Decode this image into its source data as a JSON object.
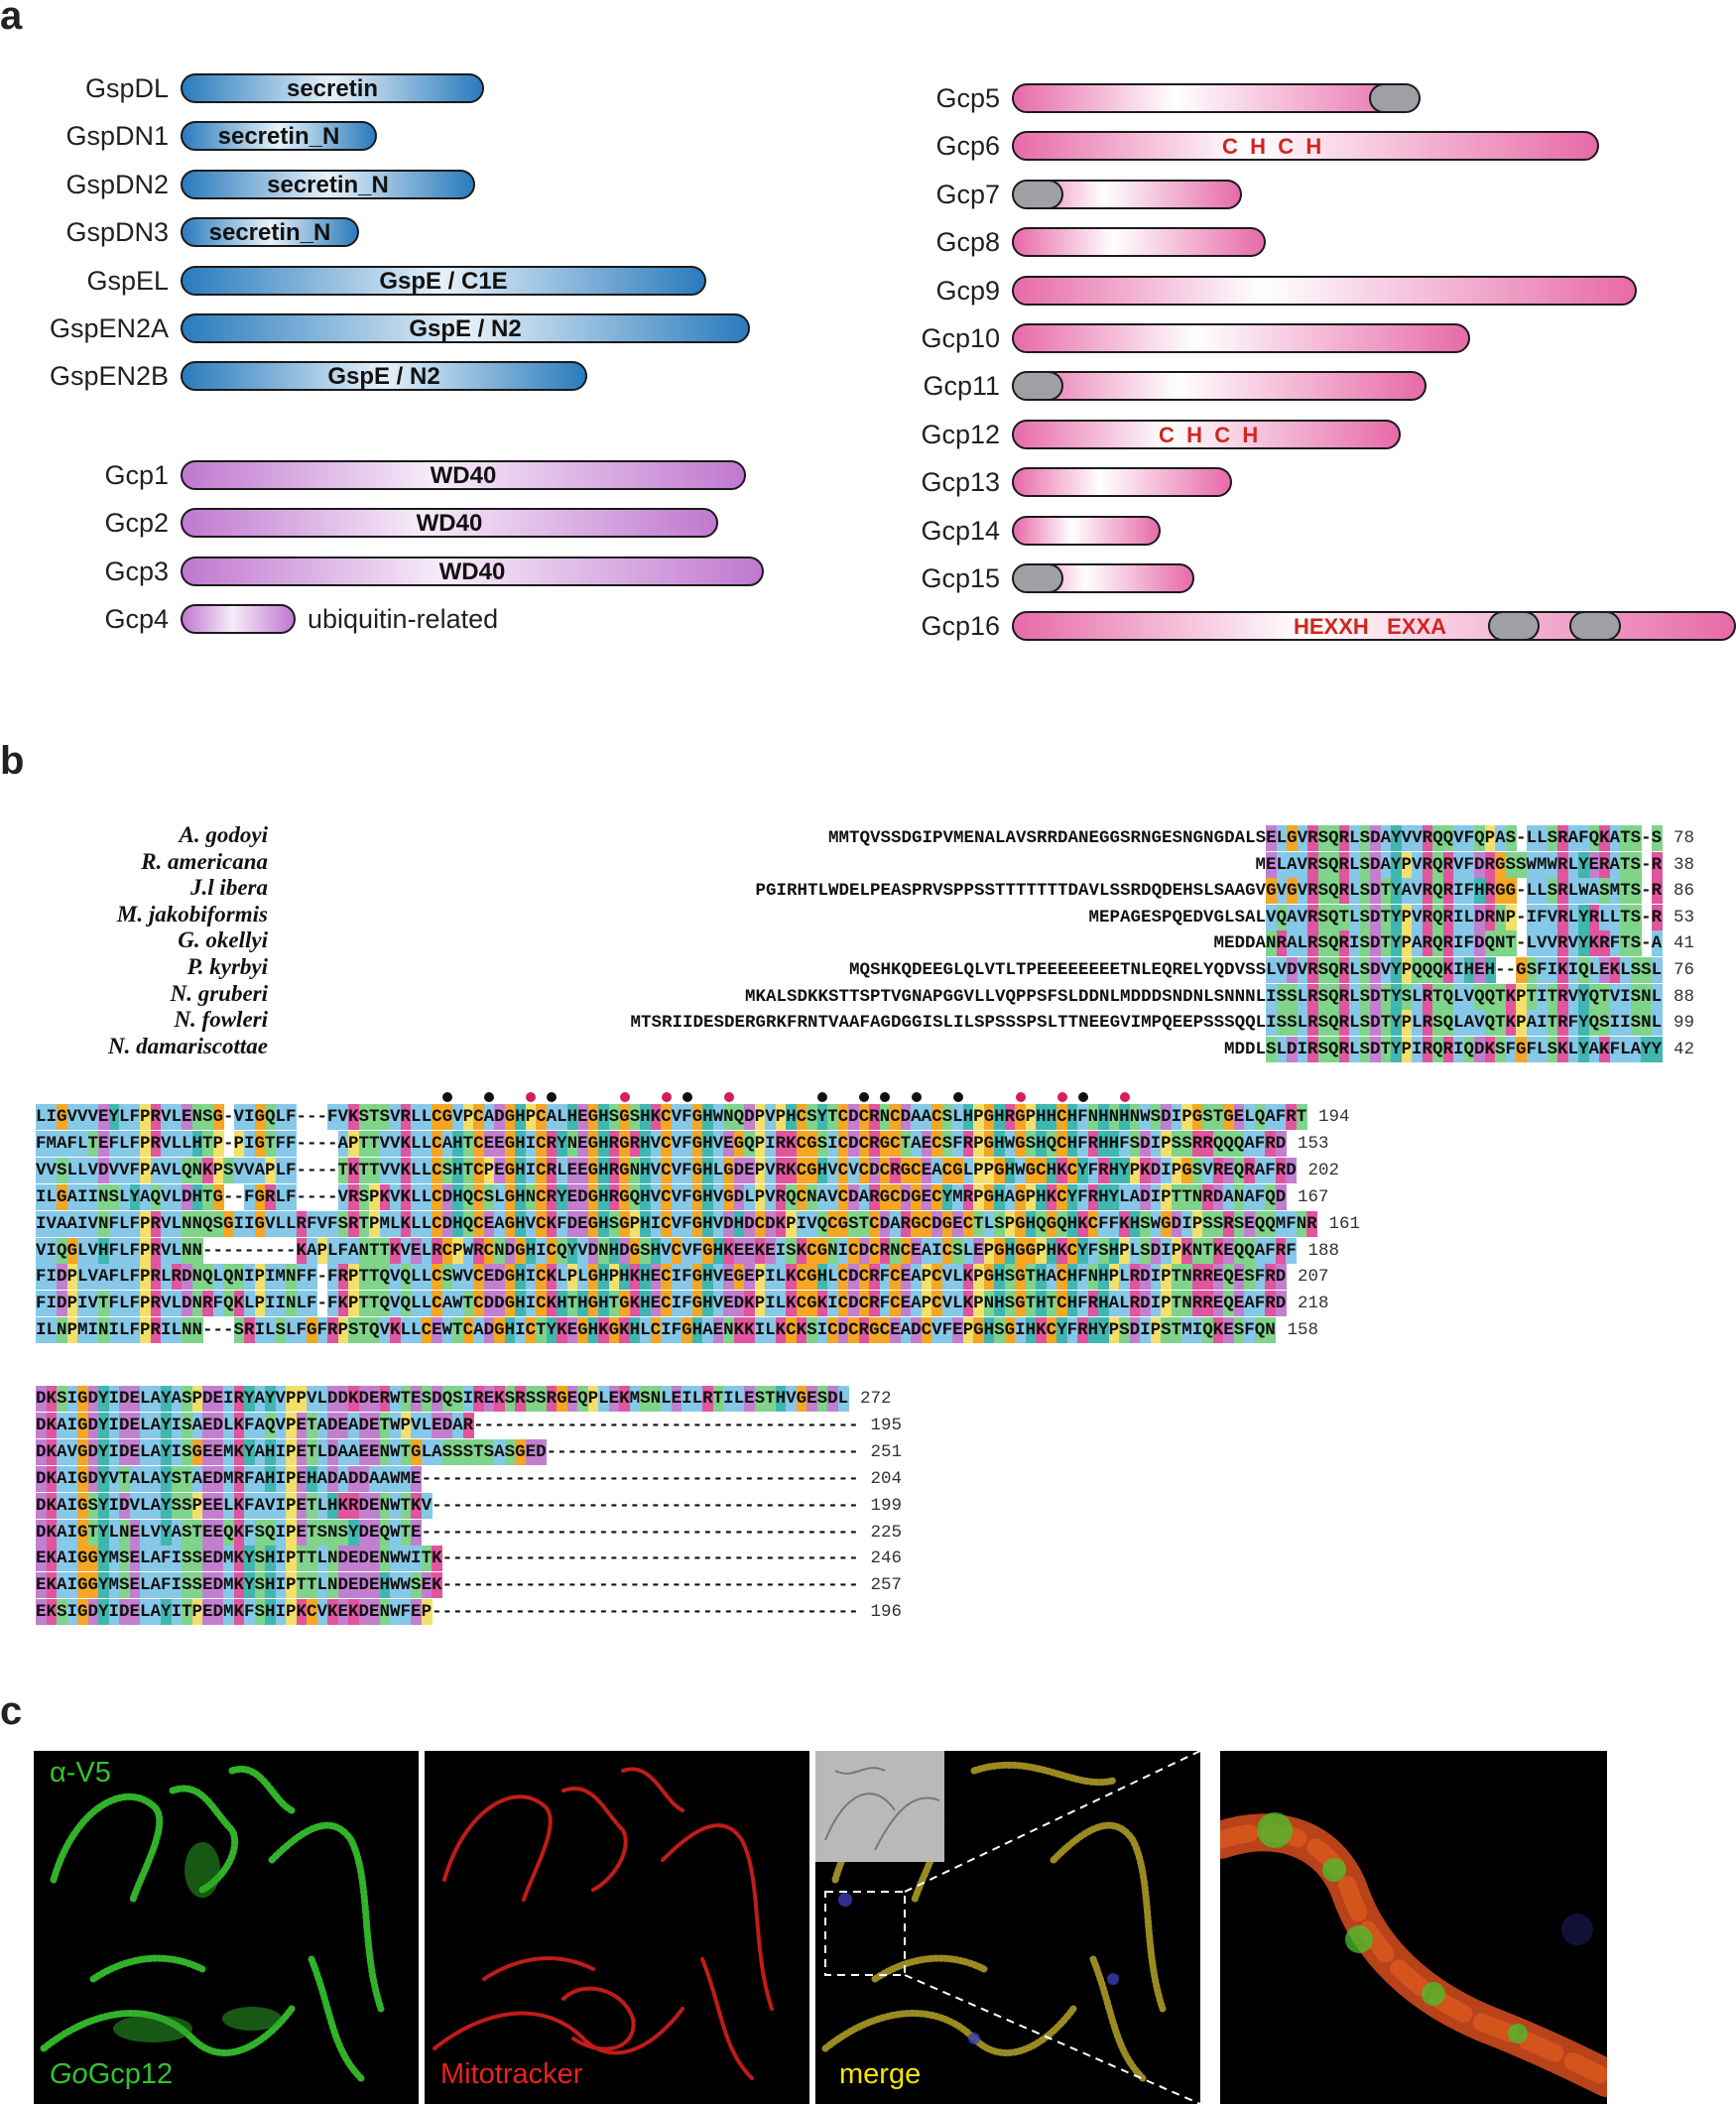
{
  "panels": {
    "a": "a",
    "b": "b",
    "c": "c"
  },
  "panel_a": {
    "left_blue": [
      {
        "name": "GspDL",
        "domain": "secretin"
      },
      {
        "name": "GspDN1",
        "domain": "secretin_N"
      },
      {
        "name": "GspDN2",
        "domain": "secretin_N"
      },
      {
        "name": "GspDN3",
        "domain": "secretin_N"
      },
      {
        "name": "GspEL",
        "domain": "GspE / C1E"
      },
      {
        "name": "GspEN2A",
        "domain": "GspE / N2"
      },
      {
        "name": "GspEN2B",
        "domain": "GspE / N2"
      }
    ],
    "left_purple": [
      {
        "name": "Gcp1",
        "domain": "WD40"
      },
      {
        "name": "Gcp2",
        "domain": "WD40"
      },
      {
        "name": "Gcp3",
        "domain": "WD40"
      },
      {
        "name": "Gcp4",
        "domain": "",
        "side_label": "ubiquitin-related"
      }
    ],
    "right_pink": [
      {
        "name": "Gcp5",
        "motif": ""
      },
      {
        "name": "Gcp6",
        "motif": "C  H  C  H"
      },
      {
        "name": "Gcp7",
        "motif": ""
      },
      {
        "name": "Gcp8",
        "motif": ""
      },
      {
        "name": "Gcp9",
        "motif": ""
      },
      {
        "name": "Gcp10",
        "motif": ""
      },
      {
        "name": "Gcp11",
        "motif": ""
      },
      {
        "name": "Gcp12",
        "motif": "C  H  C  H"
      },
      {
        "name": "Gcp13",
        "motif": ""
      },
      {
        "name": "Gcp14",
        "motif": ""
      },
      {
        "name": "Gcp15",
        "motif": ""
      },
      {
        "name": "Gcp16",
        "motif": "HEXXH   EXXA"
      }
    ],
    "colors": {
      "blue": "#2a7bbd",
      "purple": "#c078cf",
      "pink": "#e76aa8",
      "grey_domain": "#9ea0a3",
      "motif": "#d0261f"
    }
  },
  "panel_b": {
    "species": [
      "A. godoyi",
      "R. americana",
      "J.l ibera",
      "M. jakobiformis",
      "G. okellyi",
      "P. kyrbyi",
      "N. gruberi",
      "N. fowleri",
      "N. damariscottae"
    ],
    "block1": [
      {
        "seq": "MMTQVSSDGIPVMENALAVSRRDANEGGSRNGESNGNGDALSELGVRSQRLSDAYVVRQQVFQPAS-LLSRAFQKATS-S",
        "num": "78"
      },
      {
        "seq": "MELAVRSQRLSDAYPVRQRVFDRGSSWMWRLYERATS-R",
        "num": "38"
      },
      {
        "seq": "PGIRHTLWDELPEASPRVSPPSSTTTTTTTDAVLSSRDQDEHSLSAAGVGVGVRSQRLSDTYAVRQRIFHRGG-LLSRLWASMTS-R",
        "num": "86"
      },
      {
        "seq": "MEPAGESPQEDVGLSALVQAVRSQTLSDTYPVRQRILDRNP-IFVRLYRLLTS-R",
        "num": "53"
      },
      {
        "seq": "MEDDANRALRSQRISDTYPARQRIFDQNT-LVVRVYKRFTS-A",
        "num": "41"
      },
      {
        "seq": "MQSHKQDEEGLQLVTLTPEEEEEEEETNLEQRELYQDVSSLVDVRSQRLSDVYPQQQKIHEH--GSFIKIQLEKLSSL",
        "num": "76"
      },
      {
        "seq": "MKALSDKKSTTSPTVGNAPGGVLLVQPPSFSLDDNLMDDDSNDNLSNNNLISSLRSQRLSDTYSLRTQLVQQTKPTITRVYQTVISNL",
        "num": "88"
      },
      {
        "seq": "MTSRIIDESDERGRKFRNTVAAFAGDGGISLILSPSSSPSLTTNEEGVIMPQEEPSSSQQLISSLRSQRLSDTYPLRSQLAVQTKPAITRFYQSIISNL",
        "num": "99"
      },
      {
        "seq": "MDDLSLDIRSQRLSDTYPIRQRIQDKSFGFLSKLYAKFLAYY",
        "num": "42"
      }
    ],
    "block2": [
      {
        "seq": "LIGVVVEYLFPRVLENSG-VIGQLF---FVKSTSVRLLCGVPCADGHPCALHEGHSGSHKCVFGHWNQDPVPHCSYTCDCRNCDAACSLHPGHRGPHHCHFNHNHNWSDIPGSTGELQAFRT",
        "num": "194"
      },
      {
        "seq": "FMAFLTEFLFPRVLLHTP-PIGTFF----APTTVVKLLCAHTCEEGHICRYNEGHRGRHVCVFGHVEGQPIRKCGSICDCRGCTAECSFRPGHWGSHQCHFRHHFSDIPSSRRQQQAFRD",
        "num": "153"
      },
      {
        "seq": "VVSLLVDVVFPAVLQNKPSVVAPLF----TKTTVVKLLCSHTCPEGHICRLEEGHRGNHVCVFGHLGDEPVRKCGHVCVCDCRGCEACGLPPGHWGCHKCYFRHYPKDIPGSVREQRAFRD",
        "num": "202"
      },
      {
        "seq": "ILGAIINSLYAQVLDHTG--FGRLF----VRSPKVKLLCDHQCSLGHNCRYEDGHRGQHVCVFGHVGDLPVRQCNAVCDARGCDGECYMRPGHAGPHKCYFRHYLADIPTTNRDANAFQD",
        "num": "167"
      },
      {
        "seq": "IVAAIVNFLFPRVLNNQSGIIGVLLRFVFSRTPMLKLLCDHQCEAGHVCKFDEGHSGPHICVFGHVDHDCDKPIVQCGSTCDARGCDGECTLSPGHQGQHKCFFKHSWGDIPSSRSEQQMFNR",
        "num": "161"
      },
      {
        "seq": "VIQGLVHFLFPRVLNN---------KAPLFANTTKVELRCPWRCNDGHICQYVDNHDGSHVCVFGHKEEKEISKCGNICDCRNCEAICSLEPGHGGPHKCYFSHPLSDIPKNTKEQQAFRF",
        "num": "188"
      },
      {
        "seq": "FIDPLVAFLFPRLRDNQLQNIPIMNFF-FRPTTQVQLLCSWVCEDGHICKLPLGHPHKHECIFGHVEGEPILKCGHLCDCRFCEAPCVLKPGHSGTHACHFNHPLRDIPTNRREQESFRD",
        "num": "207"
      },
      {
        "seq": "FIDPIVTFLFPRVLDNRFQKLPIINLF-FKPTTQVQLLCAWTCDDGHICKHTHGHTGKHECIFGHVEDKPILKCGKICDCRFCEAPCVLKPNHSGTHTCHFRHALRDIPTNRREQEAFRD",
        "num": "218"
      },
      {
        "seq": "ILNPMINILFPRILNN---SRILSLFGFRPSTQVKLLCEWTCADGHICTYKEGHKGKHLCIFGHAENKKILKCKSICDCRGCEADCVFEPGHSGIHKCYFRHYPSDIPSTMIQKESFQN",
        "num": "158"
      }
    ],
    "block3": [
      {
        "seq": "DKSIGDYIDELAYASPDEIRYAYVPPVLDDKDERWTESDQSIREKSRSSRGEQPLEKMSNLEILRTILESTHVGESDL",
        "num": "272"
      },
      {
        "seq": "DKAIGDYIDELAYISAEDLKFAQVPETADEADETWPVLEDAR-------------------------------------",
        "num": "195"
      },
      {
        "seq": "DKAVGDYIDELAYISGEEMKYAHIPETLDAAEENWTGLASSSTSASGED------------------------------",
        "num": "251"
      },
      {
        "seq": "DKAIGDYVTALAYSTAEDMRFAHIPEHADADDAAWME------------------------------------------",
        "num": "204"
      },
      {
        "seq": "DKAIGSYIDVLAYSSPEELKFAVIPETLHKRDENWTKV-----------------------------------------",
        "num": "199"
      },
      {
        "seq": "DKAIGTYLNELVYASTEEQKFSQIPETSNSYDEQWTE------------------------------------------",
        "num": "225"
      },
      {
        "seq": "EKAIGGYMSELAFISSEDMKYSHIPTTLNDEDENWWITK----------------------------------------",
        "num": "246"
      },
      {
        "seq": "EKAIGGYMSELAFISSEDMKYSHIPTTLNDEDEHWWSEK----------------------------------------",
        "num": "257"
      },
      {
        "seq": "EKSIGDYIDELAYITPEDMKFSHIPKCVKEKDENWFEP-----------------------------------------",
        "num": "196"
      }
    ]
  },
  "panel_c": {
    "labels": {
      "v5": "α-V5",
      "gcp12_prefix": "Go",
      "gcp12_rest": "Gcp12",
      "mito": "Mitotracker",
      "merge": "merge"
    },
    "colors": {
      "green": "#36c22d",
      "red": "#e8231e",
      "yellow": "#f2e600"
    }
  }
}
